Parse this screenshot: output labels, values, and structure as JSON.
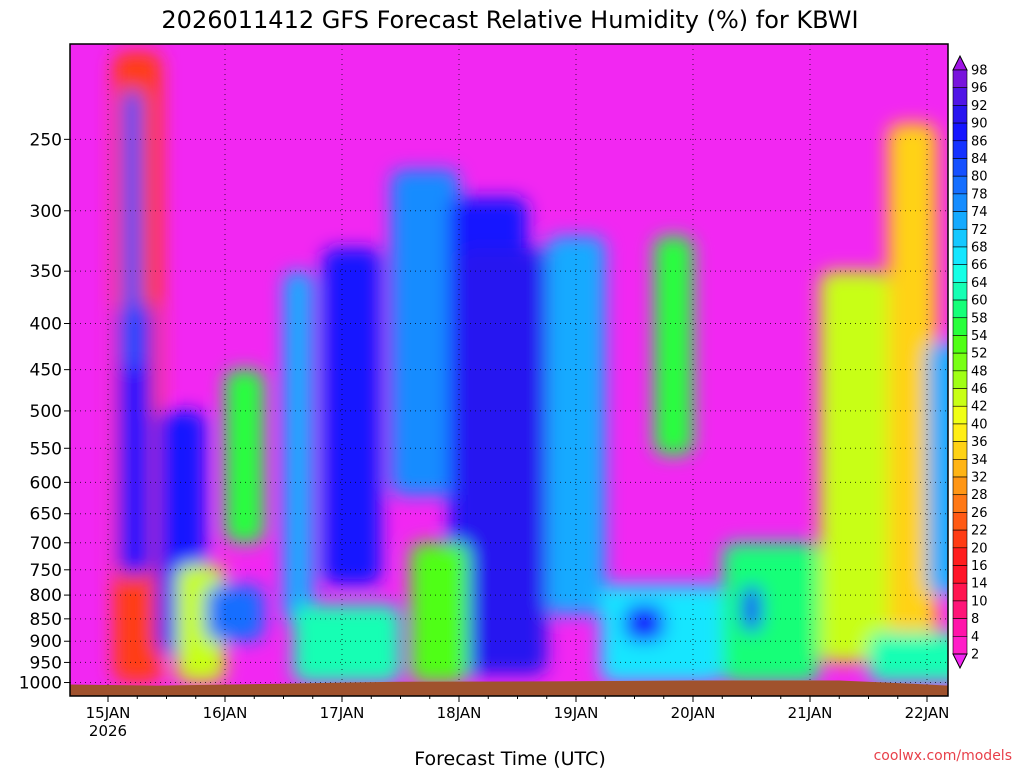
{
  "chart_data": {
    "type": "heatmap",
    "title": "2026011412 GFS Forecast Relative Humidity (%) for KBWI",
    "xlabel": "Forecast Time (UTC)",
    "ylabel": "",
    "credit": "coolwx.com/models",
    "y_scale": "log",
    "ylim": [
      1035,
      196
    ],
    "y_ticks": [
      250,
      300,
      350,
      400,
      450,
      500,
      550,
      600,
      650,
      700,
      750,
      800,
      850,
      900,
      950,
      1000
    ],
    "xlim_hours": [
      0,
      180
    ],
    "x_ticks": [
      {
        "label": "15JAN",
        "sub": "2026"
      },
      {
        "label": "16JAN",
        "sub": ""
      },
      {
        "label": "17JAN",
        "sub": ""
      },
      {
        "label": "18JAN",
        "sub": ""
      },
      {
        "label": "19JAN",
        "sub": ""
      },
      {
        "label": "20JAN",
        "sub": ""
      },
      {
        "label": "21JAN",
        "sub": ""
      },
      {
        "label": "22JAN",
        "sub": ""
      }
    ],
    "colorbar_levels": [
      2,
      4,
      8,
      10,
      14,
      16,
      20,
      22,
      26,
      28,
      32,
      34,
      36,
      40,
      42,
      46,
      48,
      52,
      54,
      58,
      60,
      64,
      66,
      68,
      72,
      74,
      78,
      80,
      84,
      86,
      90,
      92,
      96,
      98
    ],
    "colorbar_colors": [
      "#f227f2",
      "#ff1ec8",
      "#ff14aa",
      "#ff1478",
      "#ff1450",
      "#ff1428",
      "#ff1e1e",
      "#ff3c14",
      "#ff5a14",
      "#ff7814",
      "#ff9614",
      "#ffb414",
      "#ffd214",
      "#ffee14",
      "#f0ff14",
      "#c8ff14",
      "#a0ff14",
      "#78ff14",
      "#50ff14",
      "#28ff3c",
      "#14ff78",
      "#14ffb4",
      "#14ffe6",
      "#14e6ff",
      "#14c8ff",
      "#14aaff",
      "#148cff",
      "#146eff",
      "#1450ff",
      "#1432ff",
      "#1414ff",
      "#2814f0",
      "#5014e6",
      "#7814dc",
      "#a014e6"
    ],
    "terrain_color": "#a0522d",
    "rh_features": [
      {
        "t": [
          1,
          11
        ],
        "p": [
          200,
          1000
        ],
        "rh": 20
      },
      {
        "t": [
          2,
          9
        ],
        "p": [
          380,
          760
        ],
        "rh": 88
      },
      {
        "t": [
          3,
          7
        ],
        "p": [
          220,
          450
        ],
        "rh": 82
      },
      {
        "t": [
          10,
          20
        ],
        "p": [
          500,
          930
        ],
        "rh": 88
      },
      {
        "t": [
          14,
          24
        ],
        "p": [
          740,
          1000
        ],
        "rh": 45
      },
      {
        "t": [
          24,
          32
        ],
        "p": [
          450,
          700
        ],
        "rh": 56
      },
      {
        "t": [
          20,
          32
        ],
        "p": [
          780,
          900
        ],
        "rh": 78
      },
      {
        "t": [
          36,
          42
        ],
        "p": [
          350,
          860
        ],
        "rh": 72
      },
      {
        "t": [
          44,
          56
        ],
        "p": [
          330,
          780
        ],
        "rh": 86
      },
      {
        "t": [
          38,
          60
        ],
        "p": [
          820,
          1000
        ],
        "rh": 60
      },
      {
        "t": [
          58,
          72
        ],
        "p": [
          270,
          620
        ],
        "rh": 76
      },
      {
        "t": [
          70,
          86
        ],
        "p": [
          290,
          900
        ],
        "rh": 86
      },
      {
        "t": [
          72,
          90
        ],
        "p": [
          330,
          980
        ],
        "rh": 90
      },
      {
        "t": [
          62,
          74
        ],
        "p": [
          700,
          1000
        ],
        "rh": 52
      },
      {
        "t": [
          90,
          102
        ],
        "p": [
          320,
          840
        ],
        "rh": 72
      },
      {
        "t": [
          101,
          126
        ],
        "p": [
          780,
          1000
        ],
        "rh": 66
      },
      {
        "t": [
          106,
          114
        ],
        "p": [
          820,
          900
        ],
        "rh": 86
      },
      {
        "t": [
          112,
          120
        ],
        "p": [
          320,
          560
        ],
        "rh": 54
      },
      {
        "t": [
          126,
          146
        ],
        "p": [
          700,
          1000
        ],
        "rh": 58
      },
      {
        "t": [
          130,
          134
        ],
        "p": [
          780,
          880
        ],
        "rh": 84
      },
      {
        "t": [
          146,
          160
        ],
        "p": [
          350,
          950
        ],
        "rh": 42
      },
      {
        "t": [
          160,
          170
        ],
        "p": [
          240,
          950
        ],
        "rh": 34
      },
      {
        "t": [
          168,
          178
        ],
        "p": [
          420,
          800
        ],
        "rh": 72
      },
      {
        "t": [
          156,
          178
        ],
        "p": [
          880,
          1000
        ],
        "rh": 62
      }
    ]
  }
}
